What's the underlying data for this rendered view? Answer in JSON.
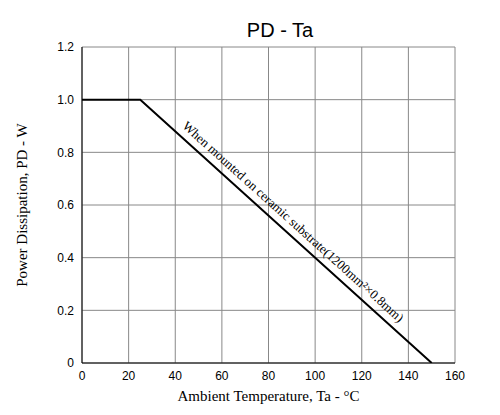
{
  "chart_data": {
    "type": "line",
    "title": "PD - Ta",
    "x_label": "Ambient Temperature, Ta - °C",
    "y_label": "Power Dissipation, PD - W",
    "annotation": "When mounted on ceramic substrate(1200mm²×0.8mm)",
    "x": [
      0,
      25,
      150
    ],
    "values": [
      1,
      1,
      0
    ],
    "color": "#000000",
    "xlim": [
      0,
      160
    ],
    "xticks": [
      0,
      20,
      40,
      60,
      80,
      100,
      120,
      140,
      160
    ],
    "ylim": [
      0,
      1.2
    ],
    "yticks": [
      0,
      0.2,
      0.4,
      0.6,
      0.8,
      {
        "value": 1,
        "label": "1.0"
      },
      1.2
    ],
    "grid": true
  }
}
